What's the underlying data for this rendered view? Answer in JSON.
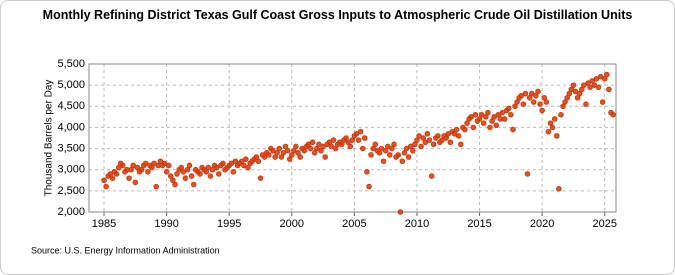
{
  "chart_data": {
    "type": "scatter",
    "title": "Monthly Refining District Texas Gulf Coast Gross Inputs to Atmospheric Crude Oil Distillation Units",
    "y_label": "Thousand Barrels per Day",
    "source": "Source: U.S. Energy Information Administration",
    "xlim": [
      1983.8,
      2025.9
    ],
    "ylim": [
      2000,
      5500
    ],
    "xticks": [
      1985,
      1990,
      1995,
      2000,
      2005,
      2010,
      2015,
      2020,
      2025
    ],
    "yticks": [
      {
        "value": 2000,
        "label": "2,000"
      },
      {
        "value": 2500,
        "label": "2,500"
      },
      {
        "value": 3000,
        "label": "3,000"
      },
      {
        "value": 3500,
        "label": "3,500"
      },
      {
        "value": 4000,
        "label": "4,000"
      },
      {
        "value": 4500,
        "label": "4,500"
      },
      {
        "value": 5000,
        "label": "5,000"
      },
      {
        "value": 5500,
        "label": "5,500"
      }
    ],
    "grid": true,
    "series": [
      {
        "name": "Gross Inputs",
        "color": "#d03a0c",
        "x": [
          1985,
          1985.17,
          1985.33,
          1985.5,
          1985.67,
          1985.83,
          1986,
          1986.17,
          1986.33,
          1986.5,
          1986.67,
          1986.83,
          1987,
          1987.17,
          1987.33,
          1987.5,
          1987.67,
          1987.83,
          1988,
          1988.17,
          1988.33,
          1988.5,
          1988.67,
          1988.83,
          1989,
          1989.17,
          1989.33,
          1989.5,
          1989.67,
          1989.83,
          1990,
          1990.17,
          1990.33,
          1990.5,
          1990.67,
          1990.83,
          1991,
          1991.17,
          1991.33,
          1991.5,
          1991.67,
          1991.83,
          1992,
          1992.17,
          1992.33,
          1992.5,
          1992.67,
          1992.83,
          1993,
          1993.17,
          1993.33,
          1993.5,
          1993.67,
          1993.83,
          1994,
          1994.17,
          1994.33,
          1994.5,
          1994.67,
          1994.83,
          1995,
          1995.17,
          1995.33,
          1995.5,
          1995.67,
          1995.83,
          1996,
          1996.17,
          1996.33,
          1996.5,
          1996.67,
          1996.83,
          1997,
          1997.17,
          1997.33,
          1997.5,
          1997.67,
          1997.83,
          1998,
          1998.17,
          1998.33,
          1998.5,
          1998.67,
          1998.83,
          1999,
          1999.17,
          1999.33,
          1999.5,
          1999.67,
          1999.83,
          2000,
          2000.17,
          2000.33,
          2000.5,
          2000.67,
          2000.83,
          2001,
          2001.17,
          2001.33,
          2001.5,
          2001.67,
          2001.83,
          2002,
          2002.17,
          2002.33,
          2002.5,
          2002.67,
          2002.83,
          2003,
          2003.17,
          2003.33,
          2003.5,
          2003.67,
          2003.83,
          2004,
          2004.17,
          2004.33,
          2004.5,
          2004.67,
          2004.83,
          2005,
          2005.17,
          2005.33,
          2005.5,
          2005.67,
          2005.83,
          2006,
          2006.17,
          2006.33,
          2006.5,
          2006.67,
          2006.83,
          2007,
          2007.17,
          2007.33,
          2007.5,
          2007.67,
          2007.83,
          2008,
          2008.17,
          2008.33,
          2008.5,
          2008.67,
          2008.83,
          2009,
          2009.17,
          2009.33,
          2009.5,
          2009.67,
          2009.83,
          2010,
          2010.17,
          2010.33,
          2010.5,
          2010.67,
          2010.83,
          2011,
          2011.17,
          2011.33,
          2011.5,
          2011.67,
          2011.83,
          2012,
          2012.17,
          2012.33,
          2012.5,
          2012.67,
          2012.83,
          2013,
          2013.17,
          2013.33,
          2013.5,
          2013.67,
          2013.83,
          2014,
          2014.17,
          2014.33,
          2014.5,
          2014.67,
          2014.83,
          2015,
          2015.17,
          2015.33,
          2015.5,
          2015.67,
          2015.83,
          2016,
          2016.17,
          2016.33,
          2016.5,
          2016.67,
          2016.83,
          2017,
          2017.17,
          2017.33,
          2017.5,
          2017.67,
          2017.83,
          2018,
          2018.17,
          2018.33,
          2018.5,
          2018.67,
          2018.83,
          2019,
          2019.17,
          2019.33,
          2019.5,
          2019.67,
          2019.83,
          2020,
          2020.17,
          2020.33,
          2020.5,
          2020.67,
          2020.83,
          2021,
          2021.17,
          2021.33,
          2021.5,
          2021.67,
          2021.83,
          2022,
          2022.17,
          2022.33,
          2022.5,
          2022.67,
          2022.83,
          2023,
          2023.17,
          2023.33,
          2023.5,
          2023.67,
          2023.83,
          2024,
          2024.17,
          2024.33,
          2024.5,
          2024.67,
          2024.83,
          2025,
          2025.17,
          2025.33,
          2025.5,
          2025.67
        ],
        "values": [
          2750,
          2600,
          2850,
          2900,
          2800,
          2950,
          2900,
          3050,
          3150,
          3100,
          2950,
          3000,
          2800,
          3000,
          3100,
          2700,
          3050,
          2950,
          3000,
          3100,
          3150,
          2950,
          3100,
          3050,
          3150,
          2600,
          3100,
          3200,
          3100,
          3150,
          2950,
          3100,
          2850,
          2750,
          2650,
          2900,
          3000,
          3050,
          2950,
          2800,
          3000,
          3100,
          2850,
          2650,
          3000,
          2950,
          2900,
          3050,
          3000,
          2950,
          3050,
          2850,
          3000,
          3100,
          3050,
          2900,
          3100,
          3150,
          3000,
          3050,
          3100,
          3150,
          2950,
          3200,
          3100,
          3150,
          3200,
          3100,
          3250,
          3050,
          3150,
          3200,
          3250,
          3300,
          3200,
          2800,
          3350,
          3300,
          3400,
          3350,
          3500,
          3450,
          3300,
          3400,
          3500,
          3300,
          3400,
          3550,
          3450,
          3250,
          3350,
          3450,
          3550,
          3400,
          3300,
          3500,
          3450,
          3550,
          3600,
          3500,
          3650,
          3400,
          3500,
          3600,
          3450,
          3550,
          3300,
          3600,
          3650,
          3550,
          3700,
          3500,
          3600,
          3650,
          3600,
          3700,
          3750,
          3650,
          3550,
          3700,
          3800,
          3850,
          3700,
          3900,
          3500,
          3750,
          2950,
          2600,
          3350,
          3500,
          3600,
          3450,
          3400,
          3500,
          3200,
          3450,
          3550,
          3350,
          3500,
          3600,
          3300,
          3350,
          2000,
          3200,
          3400,
          3500,
          3300,
          3550,
          3450,
          3600,
          3700,
          3800,
          3550,
          3750,
          3650,
          3850,
          3700,
          2850,
          3600,
          3750,
          3800,
          3650,
          3700,
          3800,
          3750,
          3850,
          3650,
          3900,
          3850,
          3950,
          3800,
          3600,
          4000,
          3950,
          4100,
          4200,
          4250,
          4000,
          4300,
          4150,
          4200,
          4300,
          4100,
          4250,
          4350,
          4000,
          4150,
          4250,
          4050,
          4300,
          4200,
          4350,
          4200,
          4400,
          4450,
          4300,
          3950,
          4500,
          4600,
          4700,
          4750,
          4550,
          4800,
          2900,
          4700,
          4800,
          4600,
          4750,
          4850,
          4550,
          4400,
          4700,
          4600,
          3900,
          4100,
          4000,
          4200,
          3800,
          2550,
          4300,
          4500,
          4600,
          4700,
          4800,
          4900,
          5000,
          4850,
          4700,
          4800,
          4900,
          5000,
          4550,
          5050,
          4950,
          5100,
          5000,
          5150,
          4950,
          5200,
          4600,
          5150,
          5250,
          4900,
          4350,
          4300
        ]
      }
    ]
  }
}
